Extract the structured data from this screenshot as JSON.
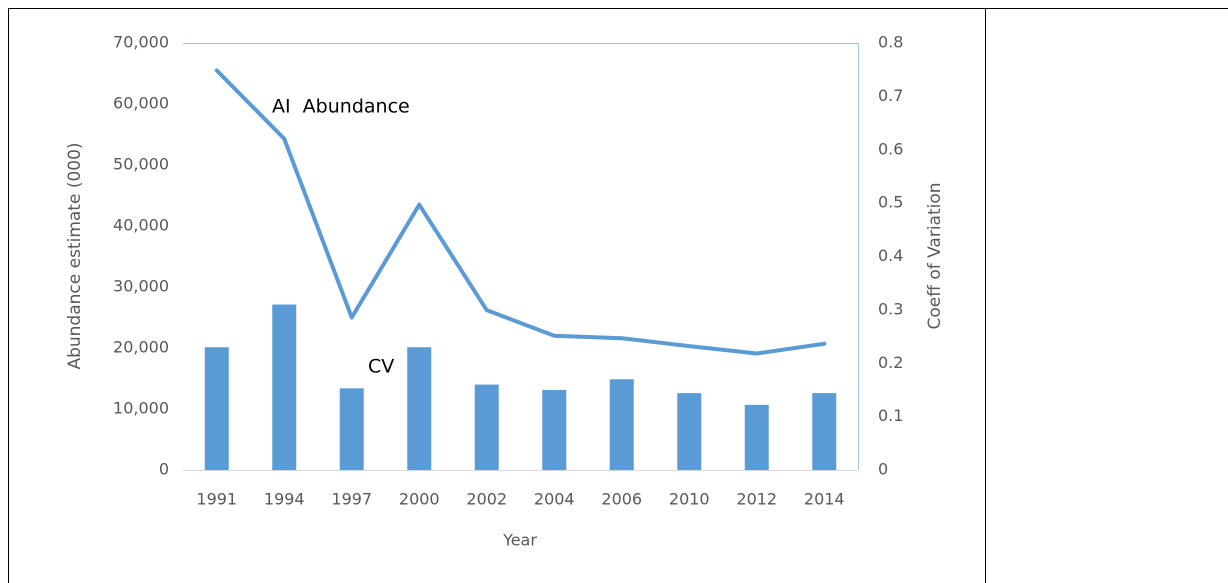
{
  "chart_data": {
    "type": "combo",
    "x_label": "Year",
    "y_label": "Abundance estimate (000)",
    "y2_label": "Coeff of Variation",
    "categories": [
      "1991",
      "1994",
      "1997",
      "2000",
      "2002",
      "2004",
      "2006",
      "2010",
      "2012",
      "2014"
    ],
    "series": [
      {
        "name": "AI  Abundance",
        "type": "line",
        "axis": "y",
        "color": "#5b9bd5",
        "values": [
          65500,
          54300,
          25000,
          43500,
          26200,
          22000,
          21600,
          20300,
          19100,
          20700
        ]
      },
      {
        "name": "CV",
        "type": "bar",
        "axis": "y2",
        "color": "#5b9bd5",
        "values": [
          0.23,
          0.31,
          0.153,
          0.23,
          0.16,
          0.15,
          0.17,
          0.144,
          0.122,
          0.144
        ]
      }
    ],
    "ylim": [
      0,
      70000
    ],
    "yticks": [
      0,
      {
        "value": 10000,
        "label": "10,000"
      },
      {
        "value": 20000,
        "label": "20,000"
      },
      {
        "value": 30000,
        "label": "30,000"
      },
      {
        "value": 40000,
        "label": "40,000"
      },
      {
        "value": 50000,
        "label": "50,000"
      },
      {
        "value": 60000,
        "label": "60,000"
      },
      {
        "value": 70000,
        "label": "70,000"
      }
    ],
    "y2lim": [
      0,
      0.8
    ],
    "y2ticks": [
      0,
      0.1,
      0.2,
      0.3,
      0.4,
      0.5,
      0.6,
      0.7,
      0.8
    ],
    "grid": false
  }
}
